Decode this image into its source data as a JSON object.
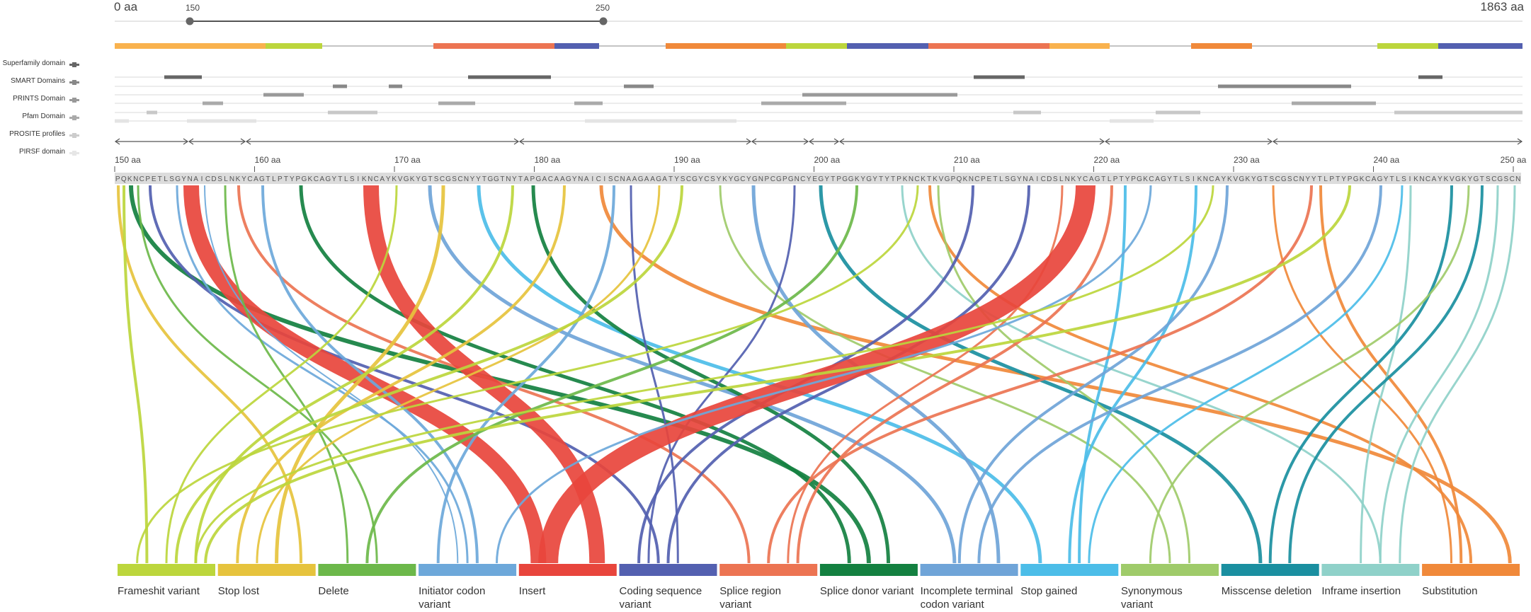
{
  "header": {
    "start_label": "0 aa",
    "end_label": "1863 aa",
    "window_start": "150",
    "window_end": "250"
  },
  "tracks": [
    {
      "id": "superfamily",
      "label": "Superfamily domain"
    },
    {
      "id": "smart",
      "label": "SMART Domains"
    },
    {
      "id": "prints",
      "label": "PRINTS Domain"
    },
    {
      "id": "pfam",
      "label": "Pfam Domain"
    },
    {
      "id": "prosite",
      "label": "PROSITE profiles"
    },
    {
      "id": "pirsf",
      "label": "PIRSF domain"
    }
  ],
  "colors": {
    "frameshift": "#bcd63c",
    "stop_lost": "#e6c33d",
    "delete": "#6cb84a",
    "initiator": "#6da8da",
    "insert": "#e8453c",
    "coding": "#5360b0",
    "splice_region": "#ec7452",
    "splice_donor": "#138040",
    "incomplete": "#6fa4d8",
    "stop_gained": "#4cbde8",
    "synonymous": "#9fcb6a",
    "misscense": "#1a8fa0",
    "inframe": "#8fd1c9",
    "substitution": "#f0893a"
  },
  "ticks": [
    "150 aa",
    "160 aa",
    "170 aa",
    "180 aa",
    "190 aa",
    "200 aa",
    "210 aa",
    "220 aa",
    "230 aa",
    "240 aa",
    "250 aa"
  ],
  "sequence": "PQKNCPETLSGYNAICDSLNKYCAGTLPTYPGKCAGYTLSIKNCAYKVGKYGTSCGSCNYYTGGTNYTAPGACAAGYNAICISCNAAGAAGATYSCGYCSYKYGCYGNPCGPGNCYEGYTPGGKYGYTYTPKNCKTKVGPQKNCPETLSGYNAICDSLNKYCAGTLPTYPGKCAGYTLSIKNCAYKVGKYGTSCGSCNYYTLPTYPGKCAGYTLSIKNCAYKVGKYGTSCGSCN",
  "legend": [
    {
      "id": "frameshift",
      "label": "Frameshit variant"
    },
    {
      "id": "stop_lost",
      "label": "Stop lost"
    },
    {
      "id": "delete",
      "label": "Delete"
    },
    {
      "id": "initiator",
      "label": "Initiator codon variant"
    },
    {
      "id": "insert",
      "label": "Insert"
    },
    {
      "id": "coding",
      "label": "Coding sequence variant"
    },
    {
      "id": "splice_region",
      "label": "Splice region variant"
    },
    {
      "id": "splice_donor",
      "label": "Splice donor variant"
    },
    {
      "id": "incomplete",
      "label": "Incomplete terminal codon variant"
    },
    {
      "id": "stop_gained",
      "label": "Stop gained"
    },
    {
      "id": "synonymous",
      "label": "Synonymous variant"
    },
    {
      "id": "misscense",
      "label": "Misscense deletion"
    },
    {
      "id": "inframe",
      "label": "Inframe insertion"
    },
    {
      "id": "substitution",
      "label": "Substitution"
    }
  ]
}
